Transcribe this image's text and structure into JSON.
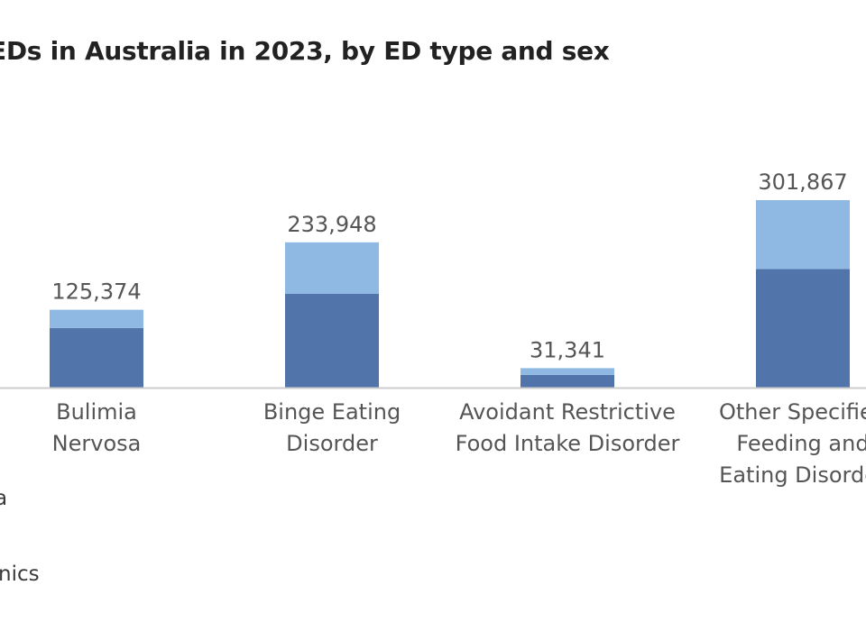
{
  "title": "EDs in Australia in 2023, by ED type and sex",
  "source_fragment": "nics",
  "legend_fragment": "a",
  "colors": {
    "dark": "#5174aa",
    "light": "#8fb9e2",
    "axis": "#cccccc",
    "label": "#555555"
  },
  "chart_data": {
    "type": "bar",
    "stacked": true,
    "title": "EDs in Australia in 2023, by ED type and sex",
    "categories": [
      [
        "Bulimia",
        "Nervosa"
      ],
      [
        "Binge Eating",
        "Disorder"
      ],
      [
        "Avoidant Restrictive",
        "Food Intake Disorder"
      ],
      [
        "Other Specified",
        "Feeding and",
        "Eating Disorder"
      ]
    ],
    "totals": [
      "125,374",
      "233,948",
      "31,341",
      "301,867"
    ],
    "series": [
      {
        "values": [
          96000,
          151000,
          20500,
          191000
        ]
      },
      {
        "values": [
          29374,
          82948,
          10841,
          110867
        ]
      }
    ],
    "ylim": [
      0,
      400000
    ],
    "grid": false
  }
}
